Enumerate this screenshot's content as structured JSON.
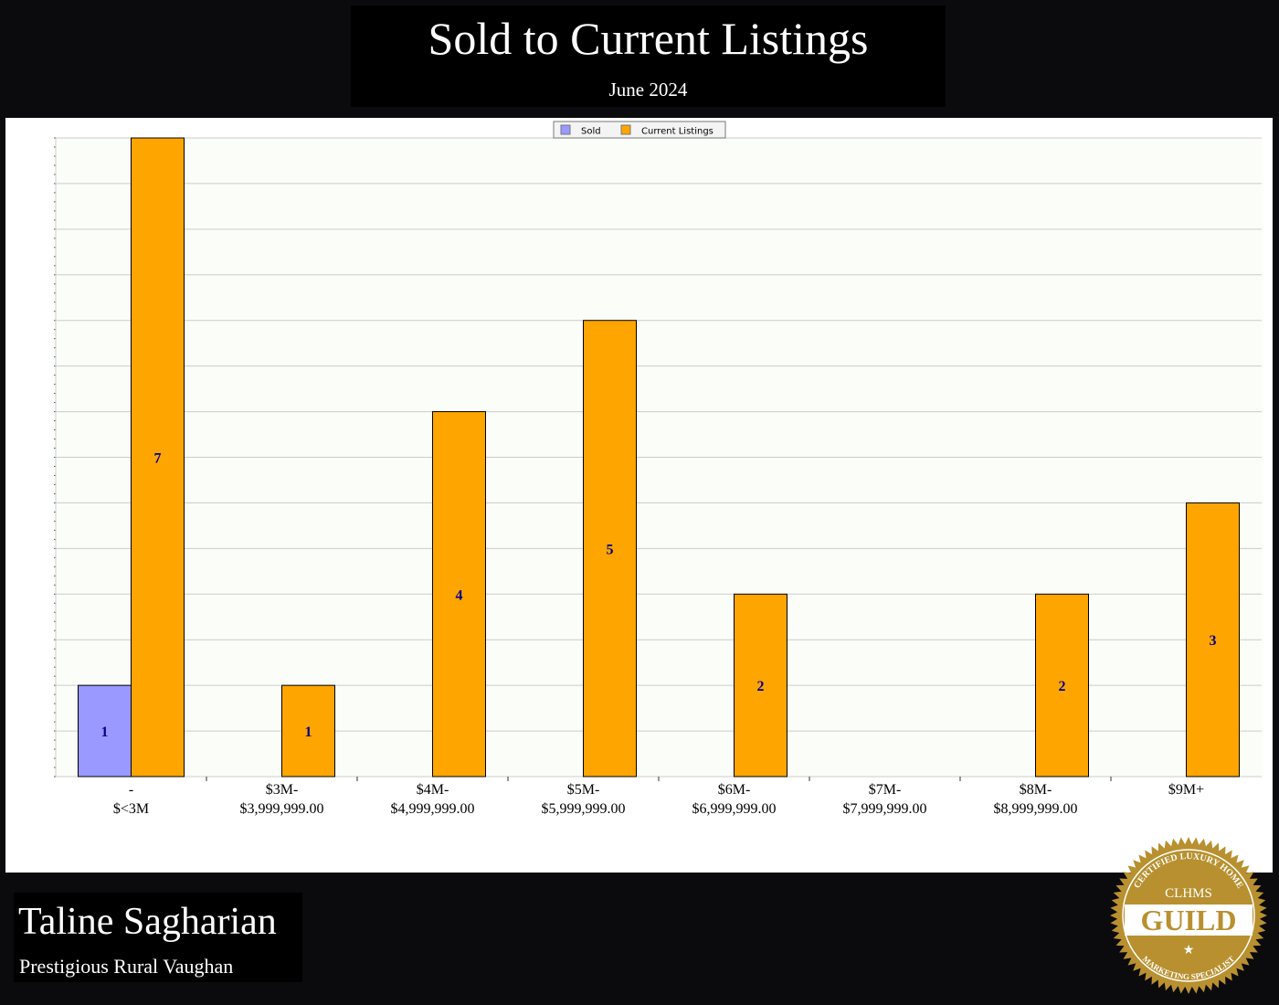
{
  "header": {
    "title": "Sold to Current Listings",
    "subtitle": "June 2024"
  },
  "footer": {
    "agent_name": "Taline Sagharian",
    "area": "Prestigious Rural Vaughan"
  },
  "badge": {
    "top": "CERTIFIED LUXURY HOME",
    "middle": "CLHMS",
    "main": "GUILD",
    "bottom": "MARKETING SPECIALIST"
  },
  "chart_data": {
    "type": "bar",
    "categories": [
      [
        "-",
        "$<3M"
      ],
      [
        "$3M-",
        "$3,999,999.00"
      ],
      [
        "$4M-",
        "$4,999,999.00"
      ],
      [
        "$5M-",
        "$5,999,999.00"
      ],
      [
        "$6M-",
        "$6,999,999.00"
      ],
      [
        "$7M-",
        "$7,999,999.00"
      ],
      [
        "$8M-",
        "$8,999,999.00"
      ],
      [
        "$9M+",
        ""
      ]
    ],
    "series": [
      {
        "name": "Sold",
        "color": "#9999ff",
        "values": [
          1,
          0,
          0,
          0,
          0,
          0,
          0,
          0
        ]
      },
      {
        "name": "Current Listings",
        "color": "#ffa500",
        "values": [
          7,
          1,
          4,
          5,
          2,
          0,
          2,
          3
        ]
      }
    ],
    "ylim": [
      0,
      7
    ],
    "grid": true,
    "legend": "top-center"
  }
}
